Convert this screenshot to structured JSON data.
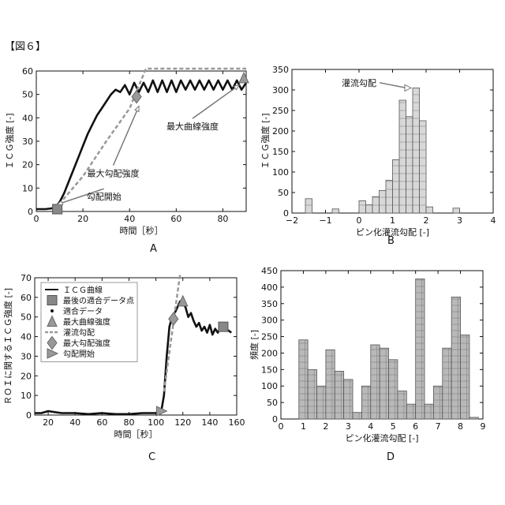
{
  "figure_label": "【図６】",
  "panel_letters": [
    "A",
    "B",
    "C",
    "D"
  ],
  "chart_data": [
    {
      "panel": "A",
      "type": "line",
      "xlabel": "時間［秒］",
      "ylabel": "ＩＣＧ強度 [-]",
      "xlim": [
        0,
        90
      ],
      "ylim": [
        0,
        60
      ],
      "xticks": [
        0,
        20,
        40,
        60,
        80
      ],
      "yticks": [
        0,
        10,
        20,
        30,
        40,
        50,
        60
      ],
      "series": [
        {
          "style": "line-thick",
          "x": [
            0,
            4,
            8,
            10,
            12,
            14,
            16,
            18,
            20,
            22,
            24,
            26,
            28,
            30,
            32,
            34,
            36,
            38,
            40,
            42,
            44,
            46,
            48,
            50,
            52,
            54,
            56,
            58,
            60,
            62,
            64,
            66,
            68,
            70,
            72,
            74,
            76,
            78,
            80,
            82,
            84,
            86,
            88,
            90
          ],
          "y": [
            1,
            1,
            1.5,
            4,
            8,
            13,
            18,
            23,
            28,
            33,
            37,
            41,
            44,
            47,
            50,
            52,
            51,
            54,
            50,
            55,
            51,
            55,
            51,
            56,
            51,
            56,
            51,
            56,
            51,
            56,
            52,
            56,
            52,
            56,
            52,
            56,
            52,
            56,
            52,
            56,
            52,
            56,
            52,
            55
          ]
        },
        {
          "style": "dashed-fit",
          "x": [
            8,
            20,
            30,
            40,
            47,
            60,
            70,
            80,
            90
          ],
          "y": [
            1,
            15,
            30,
            44,
            61,
            61,
            61,
            61,
            61
          ]
        }
      ],
      "markers": [
        {
          "shape": "square",
          "x": 9,
          "y": 1
        },
        {
          "shape": "diamond",
          "x": 43,
          "y": 49
        },
        {
          "shape": "triangle",
          "x": 89,
          "y": 57
        }
      ],
      "annotations": [
        {
          "text": "勾配開始",
          "point": [
            9,
            3
          ],
          "text_pos": [
            29,
            5
          ]
        },
        {
          "text": "最大勾配強度",
          "point": [
            44,
            45
          ],
          "text_pos": [
            33,
            15
          ]
        },
        {
          "text": "最大曲線強度",
          "point": [
            87,
            54
          ],
          "text_pos": [
            67,
            35
          ]
        }
      ]
    },
    {
      "panel": "B",
      "type": "bar",
      "xlabel": "ピン化灌流勾配 [-]",
      "ylabel": "ＩＣＧ強度 [-]",
      "xlim": [
        -2,
        4
      ],
      "ylim": [
        0,
        350
      ],
      "xticks": [
        -2,
        -1,
        0,
        1,
        2,
        3,
        4
      ],
      "yticks": [
        0,
        50,
        100,
        150,
        200,
        250,
        300,
        350
      ],
      "bin_width": 0.2,
      "bin_starts": [
        -1.6,
        -0.8,
        0.0,
        0.2,
        0.4,
        0.6,
        0.8,
        1.0,
        1.2,
        1.4,
        1.6,
        1.8,
        2.0,
        2.8
      ],
      "values": [
        35,
        10,
        30,
        20,
        40,
        55,
        80,
        130,
        275,
        235,
        305,
        225,
        15,
        12
      ],
      "annotations": [
        {
          "text": "灌流勾配",
          "point": [
            1.6,
            305
          ],
          "text_pos": [
            0.0,
            310
          ]
        }
      ]
    },
    {
      "panel": "C",
      "type": "line",
      "xlabel": "時間［秒］",
      "ylabel": "ＲＯＩに関するＩＣＧ強度 [-]",
      "xlim": [
        10,
        160
      ],
      "ylim": [
        0,
        70
      ],
      "xticks": [
        20,
        40,
        60,
        80,
        100,
        120,
        140,
        160
      ],
      "yticks": [
        0,
        10,
        20,
        30,
        40,
        50,
        60,
        70
      ],
      "legend": [
        {
          "marker": "line",
          "label": "ＩＣＧ曲線"
        },
        {
          "marker": "square",
          "label": "最後の適合データ点"
        },
        {
          "marker": "dot",
          "label": "適合データ"
        },
        {
          "marker": "triangle-up",
          "label": "最大曲線強度"
        },
        {
          "marker": "dashed",
          "label": "灌流勾配"
        },
        {
          "marker": "diamond",
          "label": "最大勾配強度"
        },
        {
          "marker": "triangle-right",
          "label": "勾配開始"
        }
      ],
      "series": [
        {
          "style": "line-thick",
          "x": [
            10,
            15,
            20,
            25,
            30,
            40,
            50,
            60,
            70,
            80,
            90,
            100,
            104,
            106,
            108,
            110,
            112,
            114,
            116,
            118,
            120,
            122,
            124,
            126,
            128,
            130,
            132,
            134,
            136,
            138,
            140,
            142,
            144,
            146,
            148,
            150,
            152,
            154,
            156
          ],
          "y": [
            1,
            1,
            2,
            1.5,
            1,
            1,
            0.5,
            1,
            0.5,
            0.5,
            1,
            1,
            2,
            10,
            30,
            45,
            50,
            52,
            55,
            58,
            57,
            55,
            50,
            52,
            48,
            45,
            47,
            43,
            45,
            42,
            46,
            41,
            44,
            42,
            45,
            43,
            44,
            43,
            42
          ]
        },
        {
          "style": "dashed-fit",
          "x": [
            106,
            118
          ],
          "y": [
            12,
            72
          ]
        }
      ],
      "markers": [
        {
          "shape": "triangle-right",
          "x": 104,
          "y": 2
        },
        {
          "shape": "diamond",
          "x": 113,
          "y": 49
        },
        {
          "shape": "triangle-up",
          "x": 120,
          "y": 58
        },
        {
          "shape": "square",
          "x": 150,
          "y": 45
        }
      ]
    },
    {
      "panel": "D",
      "type": "bar",
      "xlabel": "ピン化灌流勾配 [-]",
      "ylabel": "頻度 [-]",
      "xlim": [
        0,
        9
      ],
      "ylim": [
        0,
        450
      ],
      "xticks": [
        0,
        1,
        2,
        3,
        4,
        5,
        6,
        7,
        8,
        9
      ],
      "yticks": [
        0,
        50,
        100,
        150,
        200,
        250,
        300,
        350,
        400,
        450
      ],
      "bin_width": 0.4,
      "bin_starts": [
        0.8,
        1.2,
        1.6,
        2.0,
        2.4,
        2.8,
        3.2,
        3.6,
        4.0,
        4.4,
        4.8,
        5.2,
        5.6,
        6.0,
        6.4,
        6.8,
        7.2,
        7.6,
        8.0,
        8.4
      ],
      "values": [
        240,
        150,
        100,
        210,
        145,
        120,
        20,
        100,
        225,
        215,
        180,
        85,
        45,
        425,
        45,
        100,
        215,
        370,
        255,
        5
      ]
    }
  ]
}
